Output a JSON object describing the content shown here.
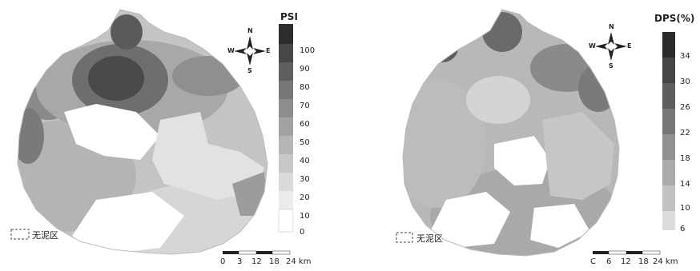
{
  "left_map": {
    "legend_title": "PSI",
    "legend_ticks": [
      "100",
      "90",
      "80",
      "70",
      "60",
      "50",
      "40",
      "30",
      "20",
      "10",
      "0"
    ],
    "nodata_label": "无泥区",
    "scale_labels": [
      "0",
      "3",
      "12",
      "18",
      "24 km"
    ],
    "compass": {
      "n": "N",
      "s": "S",
      "e": "E",
      "w": "W"
    }
  },
  "right_map": {
    "legend_title": "DPS(%)",
    "legend_ticks": [
      "34",
      "30",
      "26",
      "22",
      "18",
      "14",
      "10",
      "6"
    ],
    "nodata_label": "无泥区",
    "scale_labels": [
      "C",
      "6",
      "12",
      "18",
      "24 km"
    ],
    "compass": {
      "n": "N",
      "s": "S",
      "e": "E",
      "w": "W"
    }
  }
}
